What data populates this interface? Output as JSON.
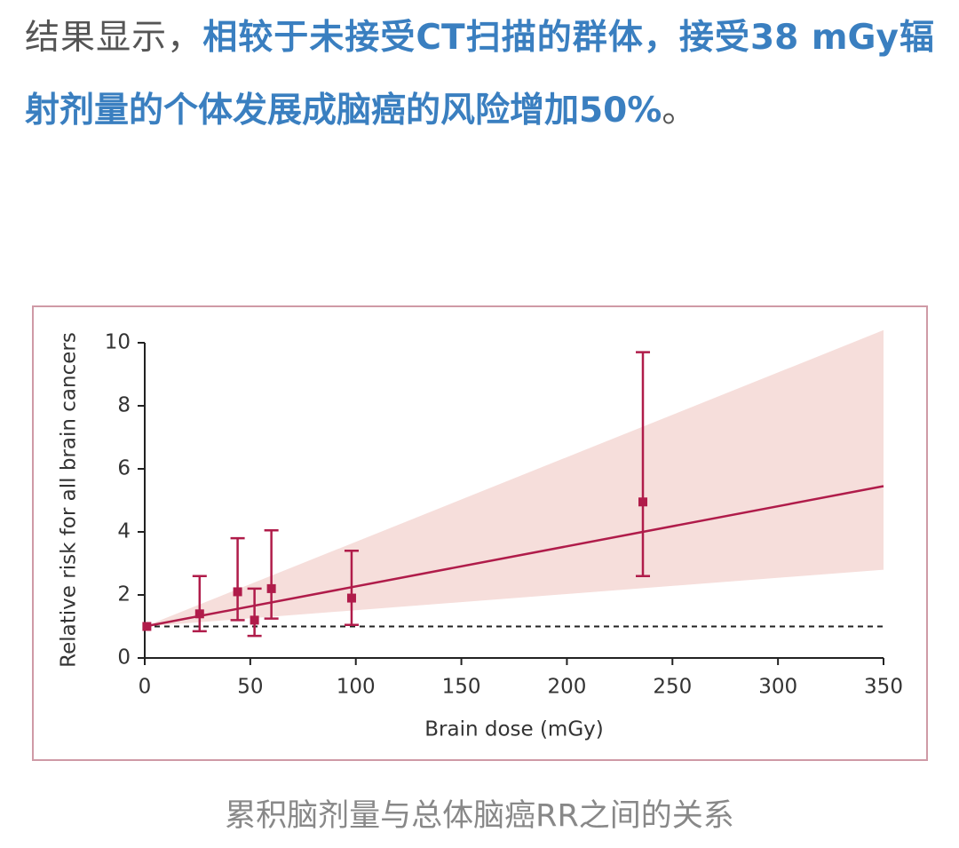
{
  "paragraph": {
    "lead": "结果显示，",
    "highlight": "相较于未接受CT扫描的群体，接受38 mGy辐射剂量的个体发展成脑癌的风险增加50%",
    "tail": "。"
  },
  "chart_data": {
    "type": "scatter",
    "xlabel": "Brain dose (mGy)",
    "ylabel": "Relative risk for all brain cancers",
    "xlim": [
      0,
      350
    ],
    "ylim": [
      0,
      10
    ],
    "xticks": [
      0,
      50,
      100,
      150,
      200,
      250,
      300,
      350
    ],
    "yticks": [
      0,
      2,
      4,
      6,
      8,
      10
    ],
    "grid": false,
    "color": "#b01c4a",
    "band_color": "#f6dedb",
    "series": [
      {
        "x": [
          1,
          26,
          44,
          52,
          60,
          98,
          236
        ],
        "values": [
          1.0,
          1.4,
          2.1,
          1.2,
          2.2,
          1.9,
          4.95
        ],
        "lower": [
          null,
          0.85,
          1.2,
          0.7,
          1.25,
          1.05,
          2.6
        ],
        "upper": [
          null,
          2.6,
          3.8,
          2.2,
          4.05,
          3.4,
          9.7
        ]
      }
    ],
    "fit": {
      "x": [
        0,
        350
      ],
      "values": [
        1,
        5.45
      ],
      "lower": [
        1,
        2.8
      ],
      "upper": [
        1,
        10.4
      ]
    },
    "reference_line": 1
  },
  "caption": "累积脑剂量与总体脑癌RR之间的关系"
}
